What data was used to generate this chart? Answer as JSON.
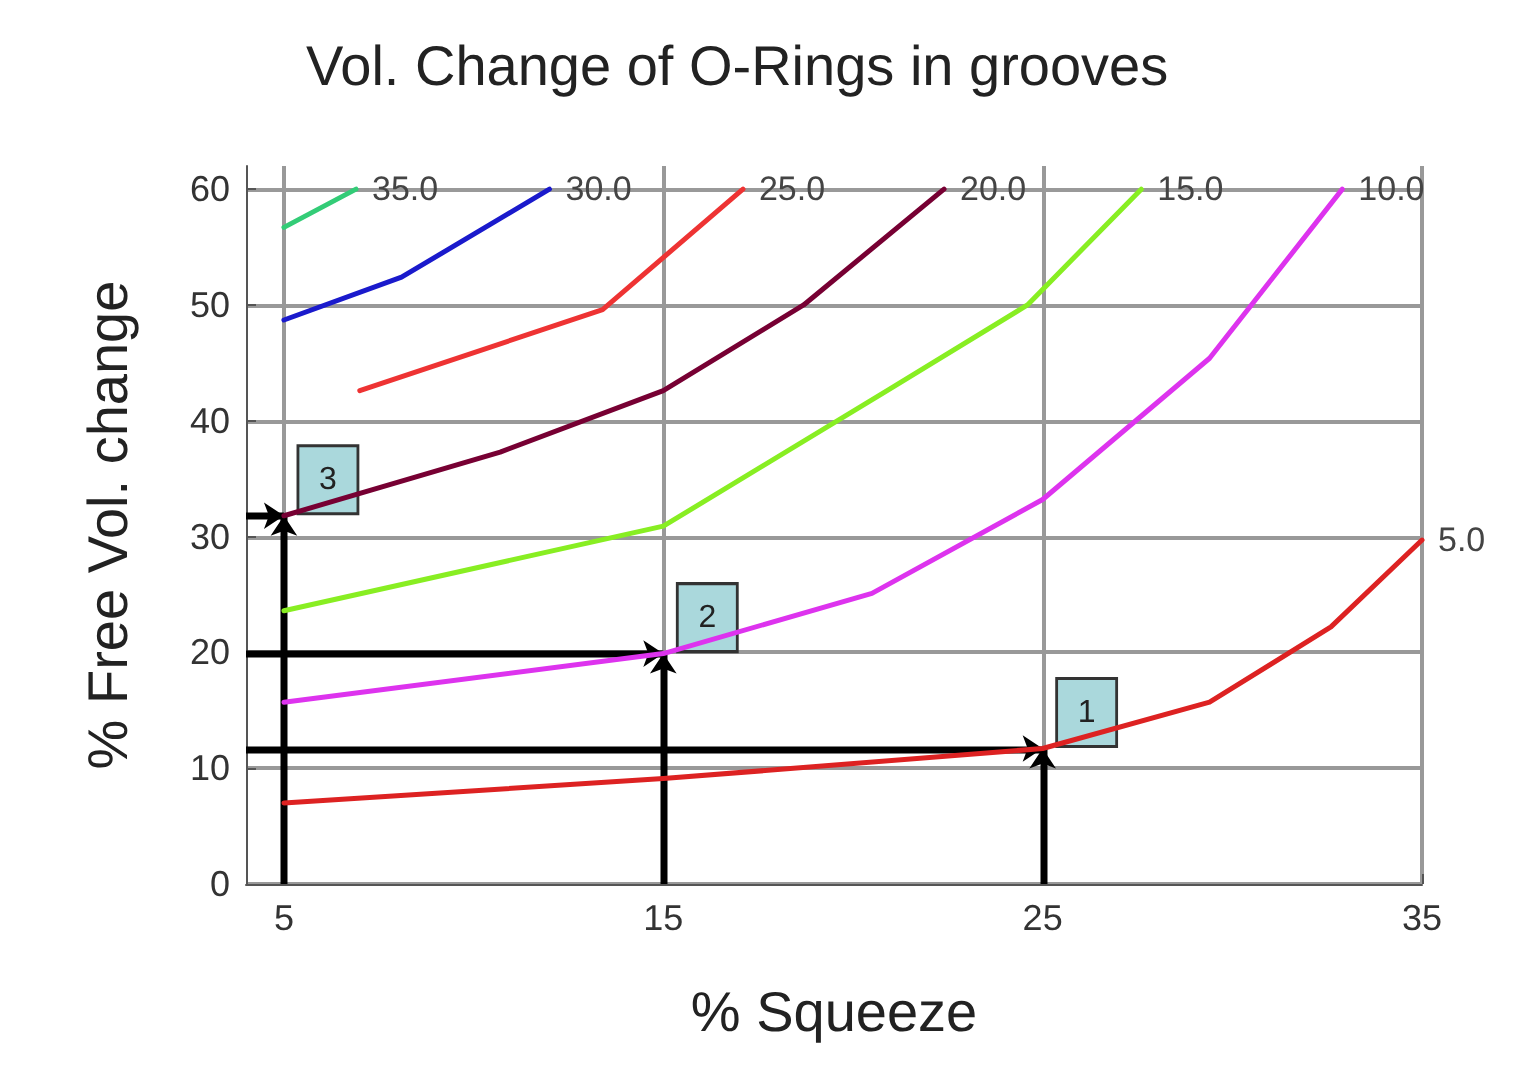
{
  "chart_data": {
    "type": "line",
    "title": "Vol. Change of O-Rings in grooves",
    "xlabel": "% Squeeze",
    "ylabel": "% Free Vol. change",
    "xlim": [
      4,
      35
    ],
    "xticks": [
      5,
      15,
      25,
      35
    ],
    "ylim": [
      0,
      62
    ],
    "yticks": [
      0,
      10,
      20,
      30,
      40,
      50,
      60
    ],
    "grid": true,
    "legend": false,
    "marker": "none",
    "line_style": "solid",
    "series": [
      {
        "name": "35.0",
        "color": "#33cc77",
        "x": [
          5,
          6.9
        ],
        "values": [
          56.7,
          60
        ]
      },
      {
        "name": "30.0",
        "color": "#1a1acc",
        "x": [
          5,
          8.1,
          12
        ],
        "values": [
          48.7,
          52.4,
          60
        ]
      },
      {
        "name": "25.0",
        "color": "#ee3333",
        "x": [
          7,
          13.4,
          17.1
        ],
        "values": [
          42.6,
          49.6,
          60
        ]
      },
      {
        "name": "20.0",
        "color": "#770033",
        "x": [
          5,
          10.7,
          15,
          18.7,
          22.4
        ],
        "values": [
          31.8,
          37.3,
          42.6,
          50,
          60
        ]
      },
      {
        "name": "15.0",
        "color": "#88ee22",
        "x": [
          5,
          15,
          20.9,
          24.6,
          27.6
        ],
        "values": [
          23.6,
          30.9,
          42.6,
          50,
          60
        ]
      },
      {
        "name": "10.0",
        "color": "#dd33ee",
        "x": [
          5,
          15,
          20.5,
          25,
          29.4,
          32.9
        ],
        "values": [
          15.7,
          19.9,
          25.1,
          33.2,
          45.4,
          60
        ]
      },
      {
        "name": "5.0",
        "color": "#dd2222",
        "x": [
          5,
          15,
          25,
          29.4,
          32.6,
          35
        ],
        "values": [
          7,
          9.1,
          11.7,
          15.7,
          22.2,
          29.7
        ]
      }
    ],
    "annotations": [
      {
        "text": "1",
        "x": 25,
        "y": 11.7
      },
      {
        "text": "2",
        "x": 15,
        "y": 19.9
      },
      {
        "text": "3",
        "x": 5,
        "y": 31.8
      }
    ]
  }
}
